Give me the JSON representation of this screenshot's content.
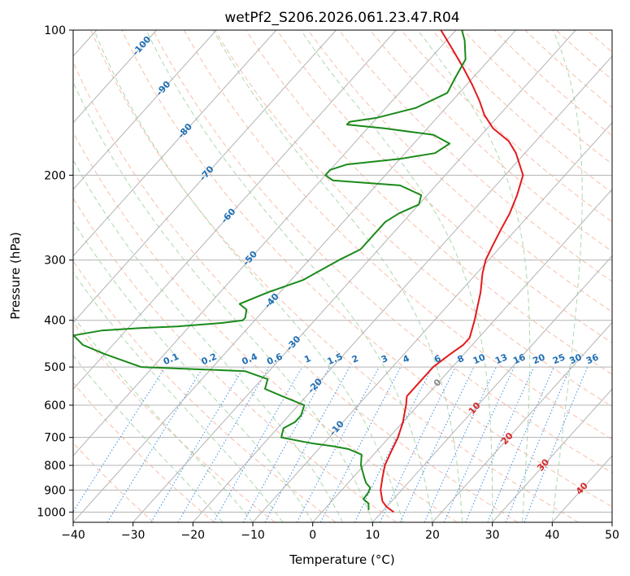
{
  "chart_data": {
    "type": "line",
    "subtype": "skew-t log-p",
    "title": "wetPf2_S206.2026.061.23.47.R04",
    "xlabel": "Temperature (°C)",
    "ylabel": "Pressure (hPa)",
    "xlim": [
      -40,
      50
    ],
    "ylim": [
      1050,
      100
    ],
    "y_scale": "log",
    "grid": true,
    "xticks": [
      -40,
      -30,
      -20,
      -10,
      0,
      10,
      20,
      30,
      40,
      50
    ],
    "yticks": [
      100,
      200,
      300,
      400,
      500,
      600,
      700,
      800,
      900,
      1000
    ],
    "colors": {
      "temperature": "#e31a1c",
      "dewpoint": "#1a8a1a",
      "isotherm": "#b3b3b3",
      "dry_adiabat": "#f5a88c",
      "moist_adiabat": "#9fd19f",
      "mixing_ratio": "#3a8ee6",
      "label_blue": "#1f6fb5",
      "label_red": "#d62728",
      "label_gray": "#888888"
    },
    "series": [
      {
        "name": "",
        "variable": "temperature",
        "points": [
          [
            1000,
            12
          ],
          [
            975,
            10
          ],
          [
            950,
            8.5
          ],
          [
            900,
            6.5
          ],
          [
            850,
            5
          ],
          [
            800,
            3.5
          ],
          [
            750,
            2.5
          ],
          [
            700,
            1.5
          ],
          [
            650,
            0
          ],
          [
            600,
            -2
          ],
          [
            575,
            -3.2
          ],
          [
            550,
            -3.2
          ],
          [
            500,
            -3.2
          ],
          [
            470,
            -2.3
          ],
          [
            450,
            -1.5
          ],
          [
            435,
            -1.5
          ],
          [
            400,
            -3.3
          ],
          [
            350,
            -6.5
          ],
          [
            320,
            -9
          ],
          [
            300,
            -10.5
          ],
          [
            280,
            -11.5
          ],
          [
            260,
            -12.5
          ],
          [
            240,
            -13.5
          ],
          [
            220,
            -15
          ],
          [
            200,
            -17
          ],
          [
            180,
            -21.5
          ],
          [
            170,
            -24.5
          ],
          [
            160,
            -29
          ],
          [
            150,
            -32.5
          ],
          [
            140,
            -35.5
          ],
          [
            130,
            -39
          ],
          [
            120,
            -43
          ],
          [
            110,
            -47.5
          ],
          [
            100,
            -52.5
          ]
        ]
      },
      {
        "name": "",
        "variable": "dewpoint",
        "points": [
          [
            990,
            7.5
          ],
          [
            960,
            6.5
          ],
          [
            940,
            5
          ],
          [
            910,
            4.8
          ],
          [
            890,
            4.4
          ],
          [
            870,
            3
          ],
          [
            850,
            2
          ],
          [
            800,
            -0.5
          ],
          [
            760,
            -2
          ],
          [
            740,
            -5
          ],
          [
            730,
            -8
          ],
          [
            720,
            -12
          ],
          [
            700,
            -18
          ],
          [
            670,
            -19
          ],
          [
            650,
            -18
          ],
          [
            630,
            -18
          ],
          [
            600,
            -19
          ],
          [
            575,
            -24
          ],
          [
            555,
            -28
          ],
          [
            530,
            -29
          ],
          [
            510,
            -34
          ],
          [
            500,
            -52
          ],
          [
            470,
            -60
          ],
          [
            450,
            -65
          ],
          [
            430,
            -68
          ],
          [
            420,
            -64
          ],
          [
            415,
            -58
          ],
          [
            412,
            -52
          ],
          [
            405,
            -45
          ],
          [
            400,
            -42
          ],
          [
            395,
            -42
          ],
          [
            380,
            -43
          ],
          [
            370,
            -45
          ],
          [
            350,
            -42
          ],
          [
            330,
            -38
          ],
          [
            300,
            -35
          ],
          [
            285,
            -33
          ],
          [
            270,
            -33
          ],
          [
            250,
            -33
          ],
          [
            240,
            -32
          ],
          [
            230,
            -30
          ],
          [
            220,
            -31
          ],
          [
            210,
            -36
          ],
          [
            205,
            -48
          ],
          [
            200,
            -50
          ],
          [
            195,
            -50
          ],
          [
            190,
            -48
          ],
          [
            185,
            -40
          ],
          [
            180,
            -35
          ],
          [
            172,
            -34
          ],
          [
            165,
            -38
          ],
          [
            160,
            -47
          ],
          [
            157,
            -54
          ],
          [
            155,
            -54
          ],
          [
            152,
            -50
          ],
          [
            145,
            -45
          ],
          [
            135,
            -42
          ],
          [
            125,
            -43
          ],
          [
            115,
            -44
          ],
          [
            105,
            -47
          ],
          [
            100,
            -49
          ]
        ]
      }
    ],
    "isotherm_labels": [
      "-100",
      "-90",
      "-80",
      "-70",
      "-60",
      "-50",
      "-40",
      "-30",
      "-20",
      "-10"
    ],
    "mixing_ratio_labels": [
      "0.1",
      "0.2",
      "0.4",
      "0.6",
      "1",
      "1.5",
      "2",
      "3",
      "4",
      "6",
      "8",
      "10",
      "13",
      "16",
      "20",
      "25",
      "30",
      "36"
    ],
    "red_labels": [
      "10",
      "20",
      "30",
      "40"
    ],
    "gray_labels": [
      "0"
    ]
  }
}
